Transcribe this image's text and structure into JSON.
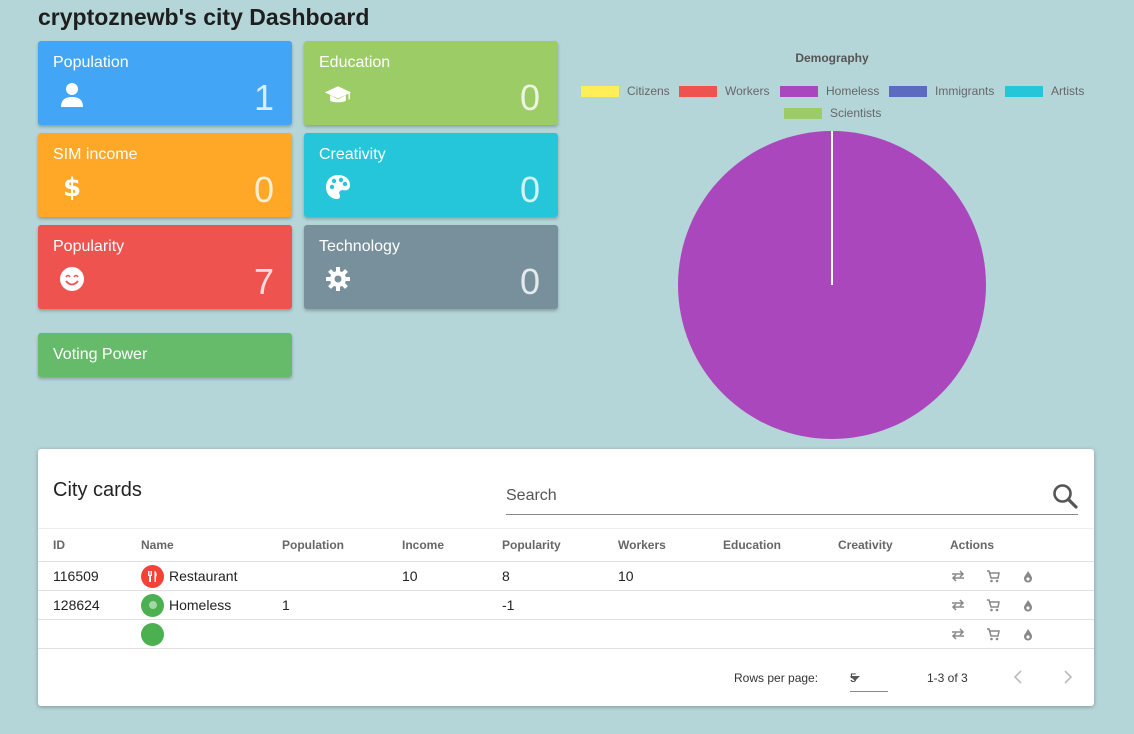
{
  "title": "cryptoznewb's city Dashboard",
  "stats": {
    "population": {
      "label": "Population",
      "value": "1",
      "icon": "person-icon",
      "color": "#42a5f5"
    },
    "education": {
      "label": "Education",
      "value": "0",
      "icon": "graduation-cap-icon",
      "color": "#9ccc65"
    },
    "sim_income": {
      "label": "SIM income",
      "value": "0",
      "icon": "dollar-icon",
      "color": "#ffa726"
    },
    "creativity": {
      "label": "Creativity",
      "value": "0",
      "icon": "palette-icon",
      "color": "#26c6da"
    },
    "popularity": {
      "label": "Popularity",
      "value": "7",
      "icon": "smile-icon",
      "color": "#ef5350"
    },
    "technology": {
      "label": "Technology",
      "value": "0",
      "icon": "gear-icon",
      "color": "#78909c"
    }
  },
  "voting_power": {
    "label": "Voting Power",
    "color": "#66bb6a"
  },
  "chart_data": {
    "type": "pie",
    "title": "Demography",
    "legend_position": "top",
    "categories": [
      "Citizens",
      "Workers",
      "Homeless",
      "Immigrants",
      "Artists",
      "Scientists"
    ],
    "values": [
      0,
      0,
      1,
      0,
      0,
      0
    ],
    "colors": [
      "#ffee58",
      "#ef5350",
      "#ab47bc",
      "#5c6bc0",
      "#26c6da",
      "#9ccc65"
    ]
  },
  "city_cards": {
    "title": "City cards",
    "search_placeholder": "Search",
    "columns": [
      "ID",
      "Name",
      "Population",
      "Income",
      "Popularity",
      "Workers",
      "Education",
      "Creativity",
      "Actions"
    ],
    "rows": [
      {
        "id": "116509",
        "name": "Restaurant",
        "population": "",
        "income": "10",
        "popularity": "8",
        "workers": "10",
        "education": "",
        "creativity": "",
        "avatar_color": "#f44336",
        "avatar_icon": "cutlery-icon"
      },
      {
        "id": "128624",
        "name": "Homeless",
        "population": "1",
        "income": "",
        "popularity": "-1",
        "workers": "",
        "education": "",
        "creativity": "",
        "avatar_color": "#4caf50",
        "avatar_icon": "dot-icon"
      },
      {
        "id": "",
        "name": "",
        "population": "",
        "income": "",
        "popularity": "",
        "workers": "",
        "education": "",
        "creativity": "",
        "avatar_color": "#4caf50",
        "avatar_icon": ""
      }
    ],
    "action_icons": [
      "swap-icon",
      "cart-icon",
      "burn-icon"
    ],
    "pagination": {
      "rows_per_page_label": "Rows per page:",
      "rows_per_page": "5",
      "range": "1-3 of 3"
    }
  }
}
